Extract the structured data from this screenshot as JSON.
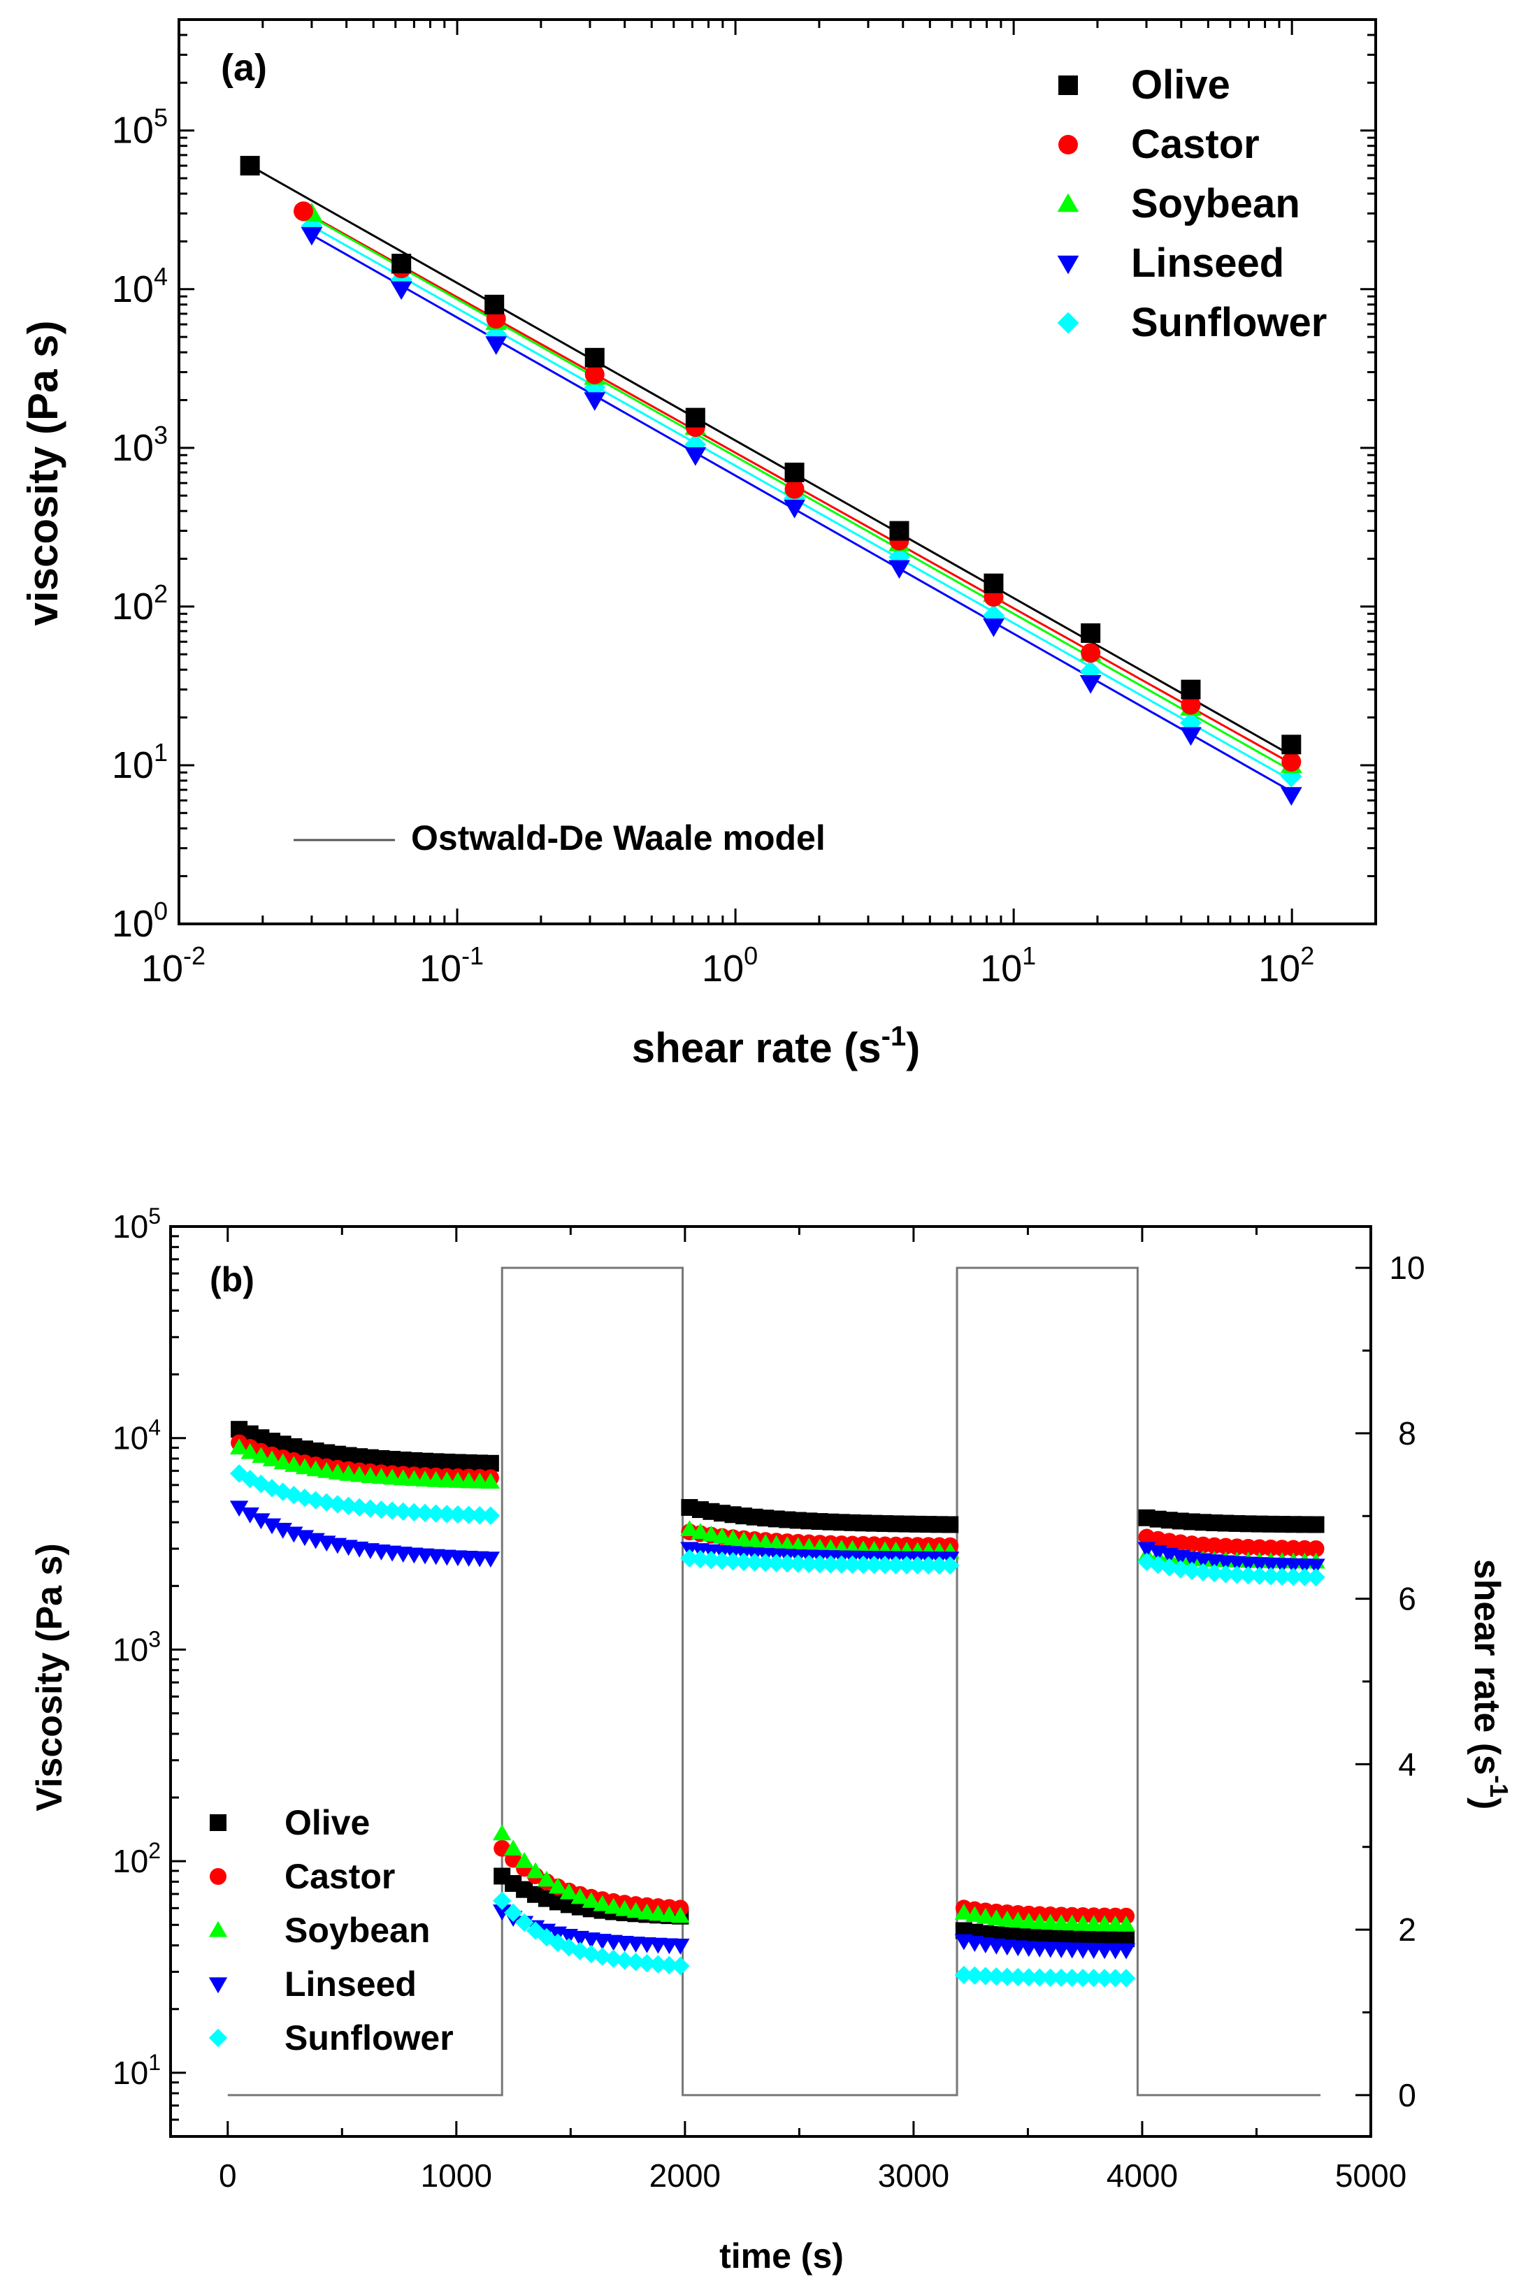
{
  "figure_title": "",
  "chart_data": [
    {
      "type": "scatter",
      "panel_label": "(a)",
      "title": "",
      "xlabel": "shear rate (s",
      "xlabel_sup": "-1",
      "xlabel_end": ")",
      "ylabel": "viscosity (Pa s)",
      "xscale": "log",
      "yscale": "log",
      "xlim": [
        0.01,
        200
      ],
      "ylim": [
        1,
        500000
      ],
      "xticks": [
        {
          "base": "10",
          "exp": "-2",
          "value": 0.01
        },
        {
          "base": "10",
          "exp": "-1",
          "value": 0.1
        },
        {
          "base": "10",
          "exp": "0",
          "value": 1
        },
        {
          "base": "10",
          "exp": "1",
          "value": 10
        },
        {
          "base": "10",
          "exp": "2",
          "value": 100
        }
      ],
      "yticks": [
        {
          "base": "10",
          "exp": "0",
          "value": 1
        },
        {
          "base": "10",
          "exp": "1",
          "value": 10
        },
        {
          "base": "10",
          "exp": "2",
          "value": 100
        },
        {
          "base": "10",
          "exp": "3",
          "value": 1000
        },
        {
          "base": "10",
          "exp": "4",
          "value": 10000
        },
        {
          "base": "10",
          "exp": "5",
          "value": 100000
        }
      ],
      "legend_position": "top-right",
      "line_legend": "Ostwald-De Waale model",
      "series": [
        {
          "name": "Olive",
          "marker": "square",
          "color": "#000000",
          "x": [
            0.018,
            0.063,
            0.136,
            0.312,
            0.718,
            1.63,
            3.88,
            8.47,
            18.9,
            43.3,
            99.5
          ],
          "y": [
            60000,
            14500,
            8000,
            3700,
            1550,
            700,
            300,
            140,
            68,
            30,
            13.5
          ],
          "fit": {
            "x": [
              0.018,
              100
            ],
            "y": [
              60000,
              11.5
            ]
          }
        },
        {
          "name": "Castor",
          "marker": "circle",
          "color": "#ff0000",
          "x": [
            0.028,
            0.063,
            0.138,
            0.312,
            0.718,
            1.63,
            3.88,
            8.47,
            18.9,
            43.3,
            99.5
          ],
          "y": [
            31000,
            13500,
            6500,
            2900,
            1350,
            550,
            260,
            115,
            51,
            24,
            10.5
          ],
          "fit": {
            "x": [
              0.028,
              100
            ],
            "y": [
              31000,
              10.2
            ]
          }
        },
        {
          "name": "Soybean",
          "marker": "triangle-up",
          "color": "#00ff00",
          "x": [
            0.03,
            0.063,
            0.138,
            0.312,
            0.718,
            1.63,
            3.88,
            8.47,
            18.9,
            43.3,
            99.5
          ],
          "y": [
            30000,
            14000,
            6200,
            2800,
            1350,
            580,
            250,
            120,
            51,
            23,
            10
          ],
          "fit": {
            "x": [
              0.03,
              100
            ],
            "y": [
              28500,
              9.2
            ]
          }
        },
        {
          "name": "Linseed",
          "marker": "triangle-down",
          "color": "#0000ff",
          "x": [
            0.03,
            0.063,
            0.138,
            0.312,
            0.718,
            1.63,
            3.88,
            8.47,
            18.9,
            43.3,
            99.5
          ],
          "y": [
            22000,
            10000,
            4500,
            2000,
            900,
            420,
            175,
            75,
            33,
            15.5,
            6.5
          ],
          "fit": {
            "x": [
              0.03,
              100
            ],
            "y": [
              22000,
              6.8
            ]
          }
        },
        {
          "name": "Sunflower",
          "marker": "diamond",
          "color": "#00ffff",
          "x": [
            0.03,
            0.063,
            0.138,
            0.312,
            0.718,
            1.63,
            3.88,
            8.47,
            18.9,
            43.3,
            99.5
          ],
          "y": [
            25000,
            11500,
            5200,
            2400,
            1050,
            480,
            205,
            88,
            39,
            18.5,
            8.5
          ],
          "fit": {
            "x": [
              0.03,
              100
            ],
            "y": [
              25000,
              8.0
            ]
          }
        }
      ]
    },
    {
      "type": "scatter",
      "panel_label": "(b)",
      "title": "",
      "xlabel": "time (s)",
      "ylabel": "Viscosity (Pa s)",
      "y2label": "shear rate (s",
      "y2label_sup": "-1",
      "y2label_end": ")",
      "xscale": "linear",
      "yscale": "log",
      "xlim": [
        -250,
        5000
      ],
      "ylim": [
        5,
        100000
      ],
      "y2lim": [
        -0.5,
        10.5
      ],
      "xticks": [
        0,
        1000,
        2000,
        3000,
        4000,
        5000
      ],
      "yticks": [
        {
          "base": "10",
          "exp": "1",
          "value": 10
        },
        {
          "base": "10",
          "exp": "2",
          "value": 100
        },
        {
          "base": "10",
          "exp": "3",
          "value": 1000
        },
        {
          "base": "10",
          "exp": "4",
          "value": 10000
        },
        {
          "base": "10",
          "exp": "5",
          "value": 100000
        }
      ],
      "y2ticks": [
        0,
        2,
        4,
        6,
        8,
        10
      ],
      "legend_position": "bottom-left",
      "shear_rate_profile": {
        "t": [
          0,
          1200,
          1200,
          1990,
          1990,
          3190,
          3190,
          3980,
          3980,
          4780
        ],
        "rate": [
          0,
          0,
          10,
          10,
          0,
          0,
          10,
          10,
          0,
          0
        ]
      },
      "series": [
        {
          "name": "Olive",
          "marker": "square",
          "color": "#000000",
          "segments": [
            {
              "t0": 50,
              "t1": 1150,
              "v0": 11000,
              "v1": 7600
            },
            {
              "t0": 1200,
              "t1": 1980,
              "v0": 85,
              "v1": 55
            },
            {
              "t0": 2020,
              "t1": 3160,
              "v0": 4700,
              "v1": 3900
            },
            {
              "t0": 3220,
              "t1": 3930,
              "v0": 47,
              "v1": 43
            },
            {
              "t0": 4020,
              "t1": 4760,
              "v0": 4200,
              "v1": 3900
            }
          ]
        },
        {
          "name": "Castor",
          "marker": "circle",
          "color": "#ff0000",
          "segments": [
            {
              "t0": 50,
              "t1": 1150,
              "v0": 9500,
              "v1": 6500
            },
            {
              "t0": 1200,
              "t1": 1980,
              "v0": 115,
              "v1": 60
            },
            {
              "t0": 2020,
              "t1": 3160,
              "v0": 3600,
              "v1": 3100
            },
            {
              "t0": 3220,
              "t1": 3930,
              "v0": 60,
              "v1": 55
            },
            {
              "t0": 4020,
              "t1": 4760,
              "v0": 3400,
              "v1": 3000
            }
          ]
        },
        {
          "name": "Soybean",
          "marker": "triangle-up",
          "color": "#00ff00",
          "segments": [
            {
              "t0": 50,
              "t1": 1150,
              "v0": 9000,
              "v1": 6200
            },
            {
              "t0": 1200,
              "t1": 1980,
              "v0": 135,
              "v1": 55
            },
            {
              "t0": 2020,
              "t1": 3160,
              "v0": 3700,
              "v1": 2900
            },
            {
              "t0": 3220,
              "t1": 3930,
              "v0": 57,
              "v1": 50
            },
            {
              "t0": 4020,
              "t1": 4760,
              "v0": 2800,
              "v1": 2600
            }
          ]
        },
        {
          "name": "Linseed",
          "marker": "triangle-down",
          "color": "#0000ff",
          "segments": [
            {
              "t0": 50,
              "t1": 1150,
              "v0": 4700,
              "v1": 2700
            },
            {
              "t0": 1200,
              "t1": 1980,
              "v0": 58,
              "v1": 40
            },
            {
              "t0": 2020,
              "t1": 3160,
              "v0": 3000,
              "v1": 2700
            },
            {
              "t0": 3220,
              "t1": 3930,
              "v0": 42,
              "v1": 38
            },
            {
              "t0": 4020,
              "t1": 4760,
              "v0": 3000,
              "v1": 2500
            }
          ]
        },
        {
          "name": "Sunflower",
          "marker": "diamond",
          "color": "#00ffff",
          "segments": [
            {
              "t0": 50,
              "t1": 1150,
              "v0": 6800,
              "v1": 4300
            },
            {
              "t0": 1200,
              "t1": 1980,
              "v0": 65,
              "v1": 32
            },
            {
              "t0": 2020,
              "t1": 3160,
              "v0": 2700,
              "v1": 2500
            },
            {
              "t0": 3220,
              "t1": 3930,
              "v0": 29,
              "v1": 28
            },
            {
              "t0": 4020,
              "t1": 4760,
              "v0": 2600,
              "v1": 2200
            }
          ]
        }
      ]
    }
  ]
}
